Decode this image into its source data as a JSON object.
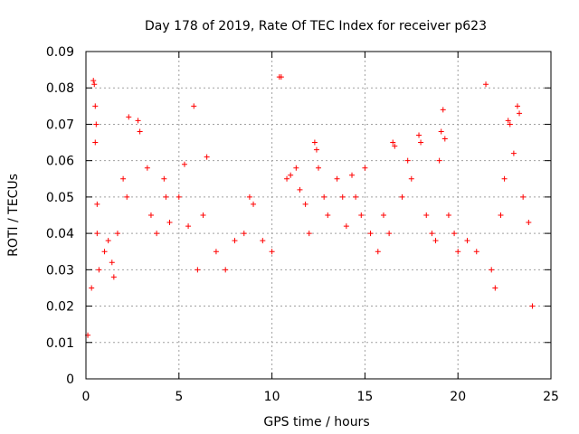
{
  "chart_data": {
    "type": "scatter",
    "title": "Day 178 of 2019, Rate Of TEC Index for receiver p623",
    "xlabel": "GPS time / hours",
    "ylabel": "ROTI / TECUs",
    "xlim": [
      0,
      25
    ],
    "ylim": [
      0,
      0.09
    ],
    "x_ticks": [
      "0",
      "5",
      "10",
      "15",
      "20",
      "25"
    ],
    "y_ticks": [
      "0",
      "0.01",
      "0.02",
      "0.03",
      "0.04",
      "0.05",
      "0.06",
      "0.07",
      "0.08",
      "0.09"
    ],
    "x_tick_values": [
      0,
      5,
      10,
      15,
      20,
      25
    ],
    "y_tick_values": [
      0,
      0.01,
      0.02,
      0.03,
      0.04,
      0.05,
      0.06,
      0.07,
      0.08,
      0.09
    ],
    "grid": true,
    "legend": "none",
    "marker": "plus",
    "marker_color": "#ff0000",
    "series": [
      {
        "points": [
          [
            0.1,
            0.012
          ],
          [
            0.3,
            0.025
          ],
          [
            0.4,
            0.082
          ],
          [
            0.45,
            0.081
          ],
          [
            0.5,
            0.065
          ],
          [
            0.5,
            0.075
          ],
          [
            0.55,
            0.07
          ],
          [
            0.6,
            0.048
          ],
          [
            0.6,
            0.04
          ],
          [
            0.7,
            0.03
          ],
          [
            1.0,
            0.035
          ],
          [
            1.2,
            0.038
          ],
          [
            1.4,
            0.032
          ],
          [
            1.5,
            0.028
          ],
          [
            1.7,
            0.04
          ],
          [
            2.0,
            0.055
          ],
          [
            2.2,
            0.05
          ],
          [
            2.3,
            0.072
          ],
          [
            2.8,
            0.071
          ],
          [
            2.9,
            0.068
          ],
          [
            3.3,
            0.058
          ],
          [
            3.5,
            0.045
          ],
          [
            3.8,
            0.04
          ],
          [
            4.2,
            0.055
          ],
          [
            4.3,
            0.05
          ],
          [
            4.5,
            0.043
          ],
          [
            5.0,
            0.05
          ],
          [
            5.3,
            0.059
          ],
          [
            5.5,
            0.042
          ],
          [
            5.8,
            0.075
          ],
          [
            6.0,
            0.03
          ],
          [
            6.5,
            0.061
          ],
          [
            6.3,
            0.045
          ],
          [
            7.0,
            0.035
          ],
          [
            7.5,
            0.03
          ],
          [
            8.0,
            0.038
          ],
          [
            8.5,
            0.04
          ],
          [
            8.8,
            0.05
          ],
          [
            9.0,
            0.048
          ],
          [
            9.5,
            0.038
          ],
          [
            10.0,
            0.035
          ],
          [
            10.4,
            0.083
          ],
          [
            10.5,
            0.083
          ],
          [
            10.8,
            0.055
          ],
          [
            11.0,
            0.056
          ],
          [
            11.3,
            0.058
          ],
          [
            11.5,
            0.052
          ],
          [
            11.8,
            0.048
          ],
          [
            12.0,
            0.04
          ],
          [
            12.3,
            0.065
          ],
          [
            12.4,
            0.063
          ],
          [
            12.5,
            0.058
          ],
          [
            12.8,
            0.05
          ],
          [
            13.0,
            0.045
          ],
          [
            13.5,
            0.055
          ],
          [
            13.8,
            0.05
          ],
          [
            14.0,
            0.042
          ],
          [
            14.3,
            0.056
          ],
          [
            14.5,
            0.05
          ],
          [
            14.8,
            0.045
          ],
          [
            15.0,
            0.058
          ],
          [
            15.3,
            0.04
          ],
          [
            15.7,
            0.035
          ],
          [
            16.0,
            0.045
          ],
          [
            16.3,
            0.04
          ],
          [
            16.5,
            0.065
          ],
          [
            16.6,
            0.064
          ],
          [
            17.0,
            0.05
          ],
          [
            17.3,
            0.06
          ],
          [
            17.5,
            0.055
          ],
          [
            17.9,
            0.067
          ],
          [
            18.0,
            0.065
          ],
          [
            18.3,
            0.045
          ],
          [
            18.6,
            0.04
          ],
          [
            18.8,
            0.038
          ],
          [
            19.0,
            0.06
          ],
          [
            19.1,
            0.068
          ],
          [
            19.2,
            0.074
          ],
          [
            19.3,
            0.066
          ],
          [
            19.5,
            0.045
          ],
          [
            19.8,
            0.04
          ],
          [
            20.0,
            0.035
          ],
          [
            20.5,
            0.038
          ],
          [
            21.0,
            0.035
          ],
          [
            21.5,
            0.081
          ],
          [
            21.8,
            0.03
          ],
          [
            22.0,
            0.025
          ],
          [
            22.3,
            0.045
          ],
          [
            22.5,
            0.055
          ],
          [
            22.7,
            0.071
          ],
          [
            22.8,
            0.07
          ],
          [
            23.0,
            0.062
          ],
          [
            23.2,
            0.075
          ],
          [
            23.3,
            0.073
          ],
          [
            23.5,
            0.05
          ],
          [
            23.8,
            0.043
          ],
          [
            24.0,
            0.02
          ]
        ]
      }
    ]
  }
}
